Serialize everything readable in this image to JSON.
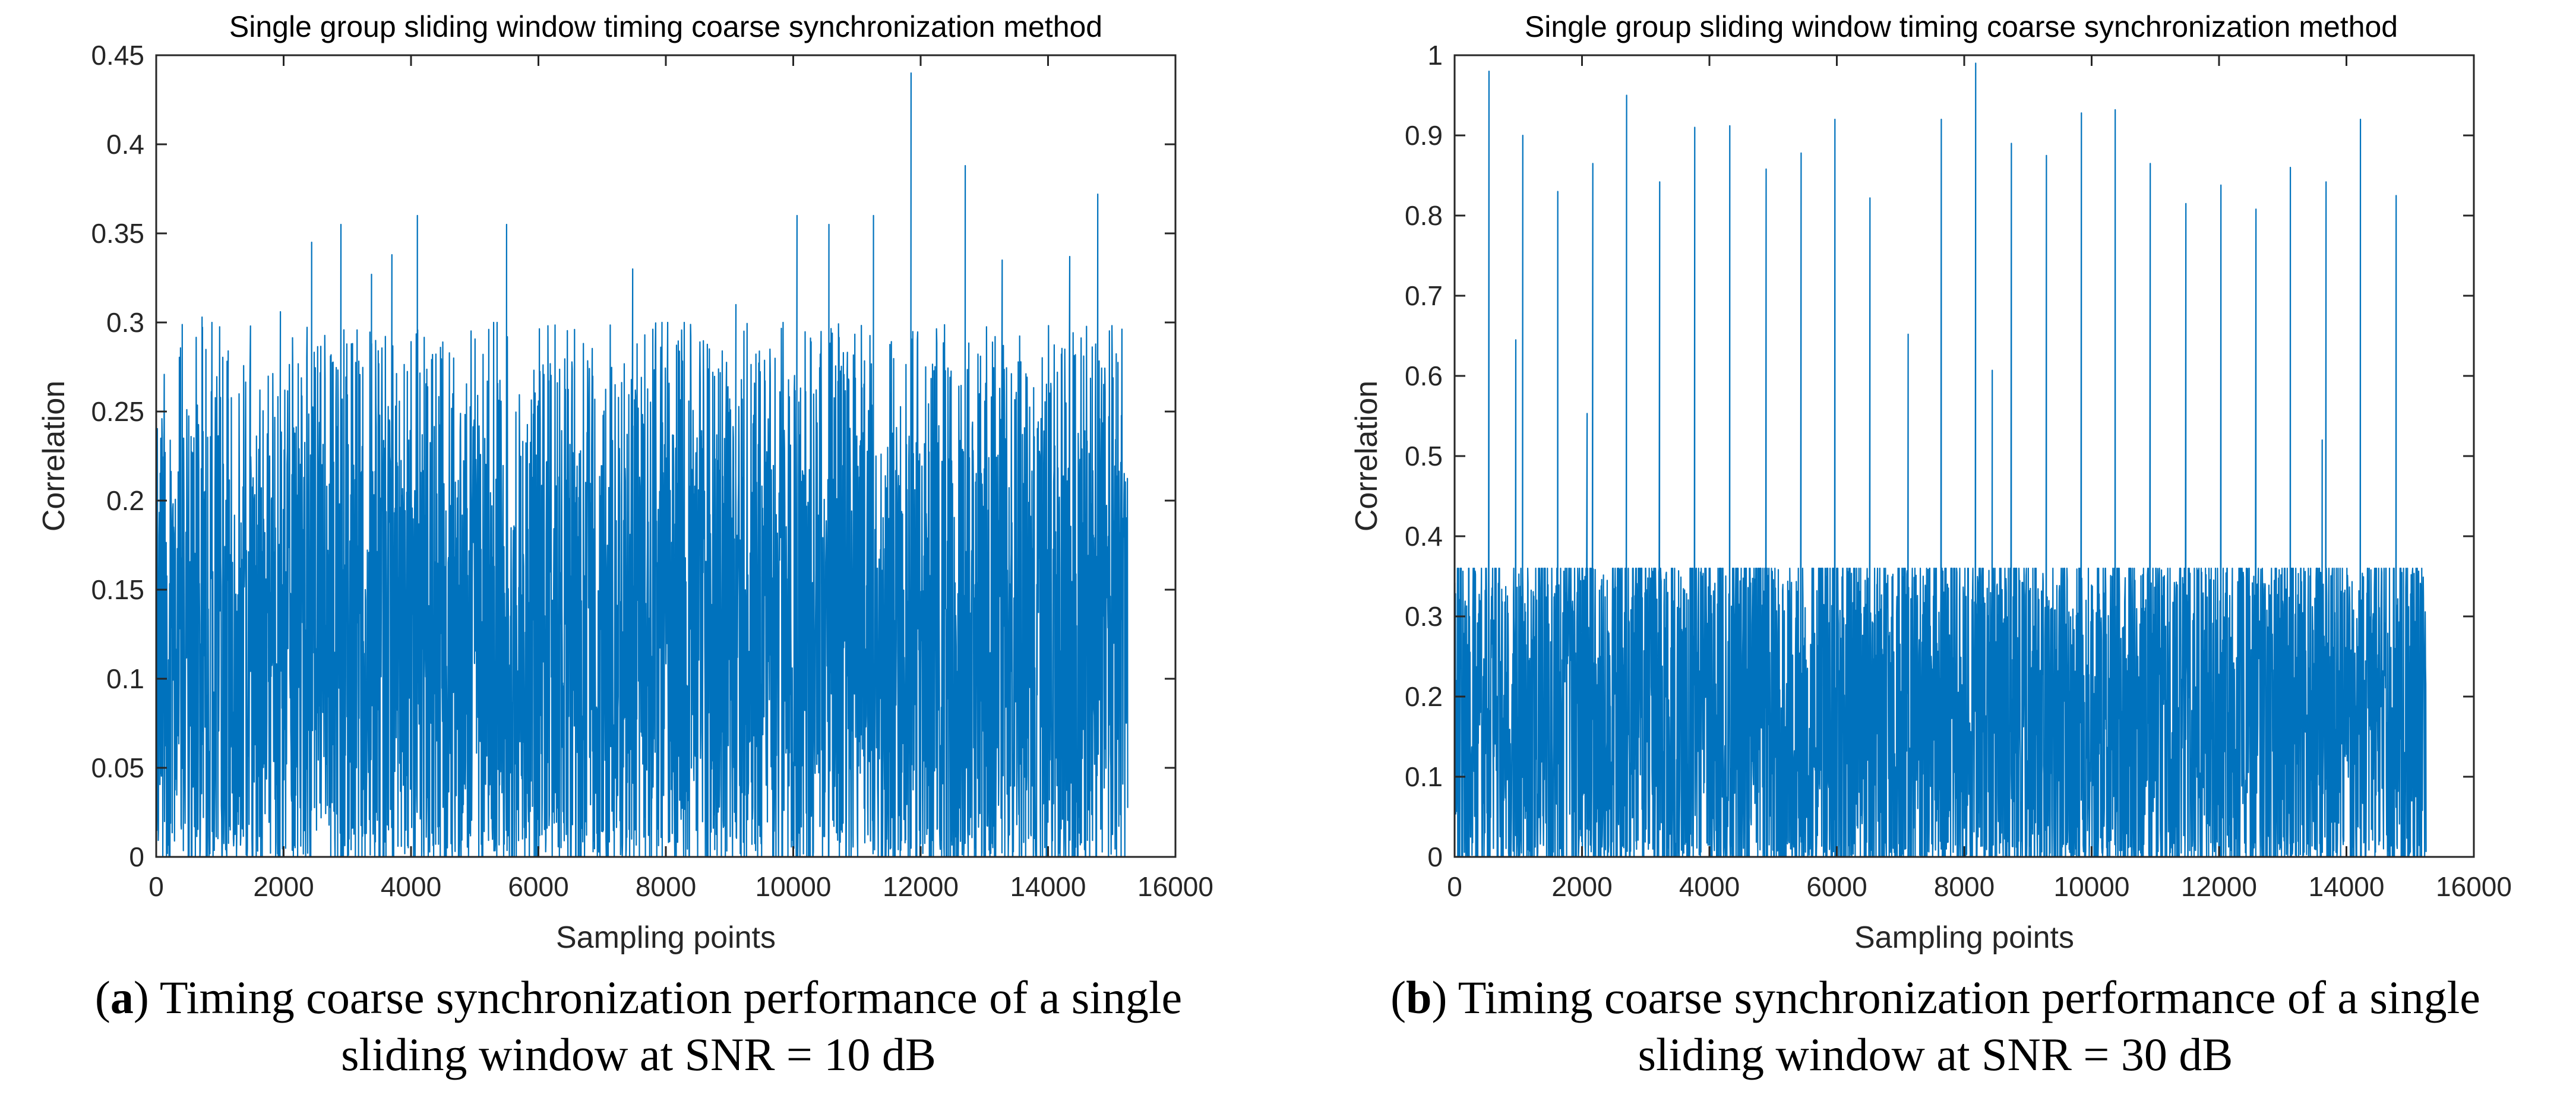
{
  "chart_data": [
    {
      "id": "a",
      "type": "line",
      "title": "Single group sliding window timing coarse synchronization method",
      "xlabel": "Sampling points",
      "ylabel": "Correlation",
      "xlim": [
        0,
        16000
      ],
      "ylim": [
        0,
        0.45
      ],
      "xticks": [
        0,
        2000,
        4000,
        6000,
        8000,
        10000,
        12000,
        14000,
        16000
      ],
      "yticks": [
        0,
        0.05,
        0.1,
        0.15,
        0.2,
        0.25,
        0.3,
        0.35,
        0.4,
        0.45
      ],
      "xtick_labels": [
        "0",
        "2000",
        "4000",
        "6000",
        "8000",
        "10000",
        "12000",
        "14000",
        "16000"
      ],
      "ytick_labels": [
        "0",
        "0.05",
        "0.1",
        "0.15",
        "0.2",
        "0.25",
        "0.3",
        "0.35",
        "0.4",
        "0.45"
      ],
      "series": [
        {
          "name": "Correlation",
          "color": "#0072BD",
          "x_end": 15250,
          "noise": {
            "mean": 0.125,
            "spread": 0.17,
            "min": 0.0,
            "max": 0.3
          },
          "peaks": [
            {
              "x": 140,
              "y": 0.227
            },
            {
              "x": 720,
              "y": 0.303
            },
            {
              "x": 1130,
              "y": 0.284
            },
            {
              "x": 1480,
              "y": 0.298
            },
            {
              "x": 1950,
              "y": 0.306
            },
            {
              "x": 2440,
              "y": 0.345
            },
            {
              "x": 2900,
              "y": 0.355
            },
            {
              "x": 3380,
              "y": 0.327
            },
            {
              "x": 3700,
              "y": 0.338
            },
            {
              "x": 4100,
              "y": 0.36
            },
            {
              "x": 5500,
              "y": 0.355
            },
            {
              "x": 7480,
              "y": 0.33
            },
            {
              "x": 9100,
              "y": 0.31
            },
            {
              "x": 10060,
              "y": 0.36
            },
            {
              "x": 10560,
              "y": 0.355
            },
            {
              "x": 11260,
              "y": 0.36
            },
            {
              "x": 11850,
              "y": 0.44
            },
            {
              "x": 12700,
              "y": 0.388
            },
            {
              "x": 13280,
              "y": 0.335
            },
            {
              "x": 14340,
              "y": 0.337
            },
            {
              "x": 14780,
              "y": 0.372
            }
          ]
        }
      ]
    },
    {
      "id": "b",
      "type": "line",
      "title": "Single group sliding window timing coarse synchronization method",
      "xlabel": "Sampling points",
      "ylabel": "Correlation",
      "xlim": [
        0,
        16000
      ],
      "ylim": [
        0,
        1
      ],
      "xticks": [
        0,
        2000,
        4000,
        6000,
        8000,
        10000,
        12000,
        14000,
        16000
      ],
      "yticks": [
        0,
        0.1,
        0.2,
        0.3,
        0.4,
        0.5,
        0.6,
        0.7,
        0.8,
        0.9,
        1
      ],
      "xtick_labels": [
        "0",
        "2000",
        "4000",
        "6000",
        "8000",
        "10000",
        "12000",
        "14000",
        "16000"
      ],
      "ytick_labels": [
        "0",
        "0.1",
        "0.2",
        "0.3",
        "0.4",
        "0.5",
        "0.6",
        "0.7",
        "0.8",
        "0.9",
        "1"
      ],
      "series": [
        {
          "name": "Correlation",
          "color": "#0072BD",
          "x_end": 15250,
          "noise": {
            "mean": 0.17,
            "spread": 0.3,
            "min": 0.0,
            "max": 0.36
          },
          "peaks": [
            {
              "x": 540,
              "y": 0.98
            },
            {
              "x": 1070,
              "y": 0.9
            },
            {
              "x": 1620,
              "y": 0.83
            },
            {
              "x": 2170,
              "y": 0.865
            },
            {
              "x": 2700,
              "y": 0.95
            },
            {
              "x": 3220,
              "y": 0.842
            },
            {
              "x": 3770,
              "y": 0.91
            },
            {
              "x": 4320,
              "y": 0.912
            },
            {
              "x": 4890,
              "y": 0.858
            },
            {
              "x": 5440,
              "y": 0.878
            },
            {
              "x": 5970,
              "y": 0.92
            },
            {
              "x": 6520,
              "y": 0.822
            },
            {
              "x": 7640,
              "y": 0.92
            },
            {
              "x": 8180,
              "y": 0.99
            },
            {
              "x": 8740,
              "y": 0.89
            },
            {
              "x": 9290,
              "y": 0.875
            },
            {
              "x": 9840,
              "y": 0.928
            },
            {
              "x": 10370,
              "y": 0.932
            },
            {
              "x": 10920,
              "y": 0.865
            },
            {
              "x": 11480,
              "y": 0.815
            },
            {
              "x": 12030,
              "y": 0.838
            },
            {
              "x": 12580,
              "y": 0.808
            },
            {
              "x": 13120,
              "y": 0.86
            },
            {
              "x": 13680,
              "y": 0.842
            },
            {
              "x": 14220,
              "y": 0.92
            },
            {
              "x": 14780,
              "y": 0.825
            },
            {
              "x": 7120,
              "y": 0.652
            },
            {
              "x": 960,
              "y": 0.645
            },
            {
              "x": 8440,
              "y": 0.607
            },
            {
              "x": 2080,
              "y": 0.553
            },
            {
              "x": 13620,
              "y": 0.52
            }
          ]
        }
      ]
    }
  ],
  "captions": {
    "a": {
      "letter": "a",
      "line1": ") Timing coarse synchronization performance of a single",
      "line2": "sliding window at SNR = 10 dB"
    },
    "b": {
      "letter": "b",
      "line1": ") Timing coarse synchronization performance of a single",
      "line2": "sliding window at SNR = 30 dB"
    }
  }
}
